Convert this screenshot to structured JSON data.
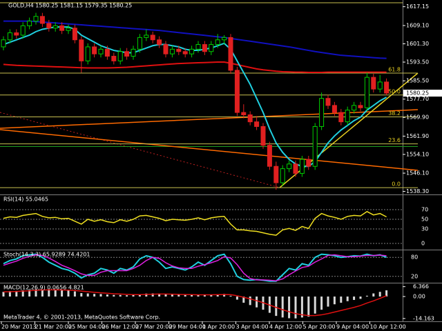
{
  "window_title": "GOLD,H4  1580.25 1581.15 1579.35 1580.25",
  "main": {
    "ylim": [
      1537,
      1620
    ],
    "yticks": [
      1617.15,
      {
        "value": 1609.1,
        "label": "1609.10"
      },
      {
        "value": 1601.3,
        "label": "1601.30"
      },
      {
        "value": 1593.5,
        "label": "1593.50"
      },
      {
        "value": 1585.5,
        "label": "1585.50"
      },
      {
        "value": 1577.7,
        "label": "1577.70"
      },
      {
        "value": 1569.9,
        "label": "1569.90"
      },
      {
        "value": 1561.9,
        "label": "1561.90"
      },
      {
        "value": 1554.1,
        "label": "1554.10"
      },
      {
        "value": 1546.1,
        "label": "1546.10"
      },
      {
        "value": 1538.3,
        "label": "1538.30"
      }
    ],
    "current_price": 1580.25,
    "fib_levels": [
      {
        "value": 61.8,
        "price": 1588.8
      },
      {
        "value": 50,
        "label": "50.0",
        "price": 1579.45
      },
      {
        "value": 38.2,
        "price": 1570.1
      },
      {
        "value": 23.6,
        "price": 1558.6
      },
      {
        "value": 0,
        "label": "0.0",
        "price": 1539.9
      }
    ],
    "candles": [
      [
        1600,
        1604.5,
        1598.5,
        1603
      ],
      [
        1603,
        1607.5,
        1601.5,
        1606
      ],
      [
        1606,
        1607.5,
        1603.5,
        1605
      ],
      [
        1605,
        1610.5,
        1603.5,
        1609
      ],
      [
        1609,
        1612.5,
        1607.5,
        1611
      ],
      [
        1611,
        1614.5,
        1609.5,
        1613
      ],
      [
        1613,
        1614.5,
        1608.5,
        1610
      ],
      [
        1610,
        1611.5,
        1606.5,
        1608
      ],
      [
        1608,
        1610.5,
        1606.5,
        1609
      ],
      [
        1609,
        1610.5,
        1605.5,
        1607
      ],
      [
        1607,
        1609.5,
        1605.5,
        1608
      ],
      [
        1608,
        1609.5,
        1601.5,
        1603
      ],
      [
        1603,
        1604.5,
        1589,
        1594
      ],
      [
        1594,
        1601.5,
        1592.5,
        1600
      ],
      [
        1600,
        1601.5,
        1595.5,
        1597
      ],
      [
        1597,
        1600.5,
        1595.5,
        1599
      ],
      [
        1599,
        1600.5,
        1594.5,
        1596
      ],
      [
        1596,
        1597.5,
        1592.5,
        1594
      ],
      [
        1594,
        1599.5,
        1592.5,
        1598
      ],
      [
        1598,
        1599.5,
        1594.5,
        1596
      ],
      [
        1596,
        1600.5,
        1594.5,
        1599
      ],
      [
        1599,
        1605.5,
        1597.5,
        1604
      ],
      [
        1604,
        1607.5,
        1602.5,
        1605
      ],
      [
        1605,
        1606.5,
        1601.5,
        1603
      ],
      [
        1603,
        1604.5,
        1599.5,
        1601
      ],
      [
        1601,
        1602.5,
        1595.5,
        1597
      ],
      [
        1597,
        1600.5,
        1595.5,
        1599
      ],
      [
        1599,
        1600.5,
        1596.5,
        1598
      ],
      [
        1598,
        1599.5,
        1595.5,
        1597
      ],
      [
        1597,
        1600.5,
        1595.5,
        1599
      ],
      [
        1599,
        1602.5,
        1597.5,
        1601
      ],
      [
        1601,
        1602.5,
        1596.5,
        1598
      ],
      [
        1598,
        1602.5,
        1596.5,
        1601
      ],
      [
        1601,
        1605.5,
        1599.5,
        1603
      ],
      [
        1603,
        1605,
        1601,
        1604
      ],
      [
        1604,
        1605.5,
        1588.5,
        1590
      ],
      [
        1590,
        1591.5,
        1570.5,
        1572
      ],
      [
        1572,
        1575.5,
        1569.5,
        1571
      ],
      [
        1571,
        1572.5,
        1566.5,
        1568
      ],
      [
        1568,
        1570.5,
        1564.5,
        1566
      ],
      [
        1566,
        1567.5,
        1556.5,
        1558
      ],
      [
        1558,
        1559.5,
        1547.5,
        1549
      ],
      [
        1549,
        1551,
        1539,
        1542
      ],
      [
        1542,
        1549.5,
        1540.5,
        1548
      ],
      [
        1548,
        1551.5,
        1546.5,
        1550
      ],
      [
        1550,
        1551.5,
        1544.5,
        1546
      ],
      [
        1546,
        1553.5,
        1544.5,
        1552
      ],
      [
        1552,
        1553.5,
        1547.5,
        1549
      ],
      [
        1549,
        1567.5,
        1547.5,
        1566
      ],
      [
        1566,
        1580.5,
        1564.5,
        1578
      ],
      [
        1578,
        1579.5,
        1573.5,
        1575
      ],
      [
        1575,
        1576.5,
        1570.5,
        1572
      ],
      [
        1572,
        1573.5,
        1566.5,
        1568
      ],
      [
        1568,
        1574.5,
        1566.5,
        1573
      ],
      [
        1573,
        1576.5,
        1571.5,
        1575
      ],
      [
        1575,
        1576.5,
        1572.5,
        1574
      ],
      [
        1574,
        1589,
        1572.5,
        1587
      ],
      [
        1587,
        1588.5,
        1580.5,
        1582
      ],
      [
        1582,
        1588,
        1580.5,
        1585
      ],
      [
        1585,
        1586.5,
        1579.35,
        1580.25
      ]
    ],
    "moving_averages": [
      {
        "color": "#1010c0",
        "values": [
          1611,
          1611,
          1611,
          1611,
          1611,
          1610.8,
          1610.6,
          1610.4,
          1610.2,
          1610,
          1609.8,
          1609.6,
          1609.4,
          1609.2,
          1609,
          1608.8,
          1608.6,
          1608.4,
          1608.2,
          1608,
          1607.8,
          1607.6,
          1607.4,
          1607.2,
          1607,
          1606.7,
          1606.4,
          1606.1,
          1605.8,
          1605.5,
          1605.2,
          1604.9,
          1604.6,
          1604.3,
          1604,
          1603.6,
          1603.2,
          1602.8,
          1602.4,
          1602,
          1601.6,
          1601.2,
          1600.8,
          1600.4,
          1600,
          1599.5,
          1599,
          1598.5,
          1598,
          1597.6,
          1597.2,
          1596.8,
          1596.4,
          1596.2,
          1596,
          1595.8,
          1595.6,
          1595.4,
          1595.2,
          1595.1
        ]
      },
      {
        "color": "#e01010",
        "values": [
          1592.5,
          1592.3,
          1592.1,
          1592,
          1591.9,
          1591.8,
          1591.7,
          1591.6,
          1591.5,
          1591.4,
          1591.3,
          1591.2,
          1591.1,
          1591,
          1591,
          1591,
          1591,
          1591.1,
          1591.2,
          1591.3,
          1591.5,
          1591.7,
          1591.9,
          1592.1,
          1592.3,
          1592.5,
          1592.7,
          1592.9,
          1593,
          1593.1,
          1593.2,
          1593.3,
          1593.4,
          1593.5,
          1593.5,
          1593,
          1592.4,
          1591.8,
          1591.2,
          1590.6,
          1590.2,
          1589.9,
          1589.6,
          1589.4,
          1589.3,
          1589.2,
          1589.2,
          1589.1,
          1589.1,
          1589.1,
          1589.2,
          1589.2,
          1589.2,
          1589.2,
          1589.2,
          1589.2,
          1589.2,
          1589.2,
          1589.2,
          1589.2
        ]
      },
      {
        "color": "#20d0e0",
        "values": [
          1601,
          1602,
          1603,
          1604,
          1605,
          1606.5,
          1607.5,
          1608,
          1608.5,
          1608.5,
          1608.5,
          1607.5,
          1605,
          1603.5,
          1602,
          1600.5,
          1599.5,
          1598.5,
          1598,
          1597.5,
          1597.5,
          1598.5,
          1599.5,
          1600.5,
          1601,
          1601,
          1600.5,
          1600,
          1599,
          1598.5,
          1598.5,
          1599,
          1599.5,
          1600.5,
          1601.5,
          1599,
          1594,
          1589,
          1584,
          1578,
          1572,
          1565,
          1559,
          1555,
          1552,
          1550,
          1549,
          1549,
          1551,
          1555,
          1559,
          1562,
          1564.5,
          1566.5,
          1568.5,
          1570,
          1573,
          1575,
          1577,
          1578.5
        ]
      }
    ]
  },
  "rsi": {
    "label": "RSI(14) 55.0465",
    "ylim": [
      0,
      100
    ],
    "ticks": [
      0,
      30,
      50,
      70
    ],
    "values": [
      52,
      55,
      54,
      58,
      60,
      62,
      56,
      53,
      54,
      51,
      52,
      46,
      40,
      50,
      46,
      49,
      45,
      43,
      49,
      46,
      50,
      57,
      58,
      55,
      52,
      47,
      50,
      49,
      48,
      50,
      53,
      49,
      53,
      55,
      56,
      40,
      28,
      28,
      26,
      25,
      22,
      19,
      17,
      28,
      31,
      27,
      35,
      31,
      52,
      62,
      57,
      54,
      50,
      56,
      58,
      57,
      66,
      59,
      62,
      55
    ]
  },
  "stochastic": {
    "label": "Stoch(14,3,3) 65.9289 74.4201",
    "ylim": [
      0,
      100
    ],
    "ticks": [
      20,
      80
    ],
    "main": [
      60,
      70,
      75,
      85,
      88,
      90,
      80,
      65,
      55,
      45,
      40,
      30,
      15,
      25,
      30,
      45,
      40,
      30,
      45,
      40,
      50,
      75,
      85,
      80,
      65,
      45,
      50,
      45,
      40,
      50,
      65,
      55,
      70,
      85,
      90,
      60,
      20,
      10,
      8,
      10,
      8,
      5,
      5,
      25,
      45,
      40,
      60,
      55,
      80,
      90,
      88,
      85,
      80,
      82,
      85,
      84,
      90,
      85,
      88,
      80
    ],
    "signal": [
      55,
      62,
      68,
      77,
      83,
      88,
      86,
      78,
      67,
      55,
      47,
      38,
      28,
      23,
      23,
      33,
      38,
      38,
      38,
      38,
      45,
      55,
      70,
      80,
      77,
      63,
      53,
      47,
      45,
      45,
      52,
      57,
      63,
      70,
      82,
      78,
      57,
      30,
      13,
      9,
      9,
      8,
      6,
      12,
      25,
      37,
      48,
      52,
      65,
      75,
      86,
      88,
      85,
      82,
      82,
      84,
      86,
      86,
      87,
      85
    ]
  },
  "macd": {
    "label": "MACD(12,26,9) 0.0656 4.821",
    "ylim": [
      -16,
      8
    ],
    "ticks": [
      6.366,
      {
        "value": 0,
        "label": "0.00"
      },
      -14.163
    ],
    "histogram": [
      3,
      3.5,
      3.6,
      4,
      4.3,
      4.6,
      4.5,
      4.3,
      4.2,
      4,
      3.9,
      3.3,
      2.2,
      2,
      1.7,
      1.6,
      1.3,
      1,
      1,
      0.8,
      0.9,
      1.5,
      1.9,
      2,
      1.9,
      1.5,
      1.4,
      1.2,
      1,
      1,
      1.1,
      1,
      1.2,
      1.5,
      1.7,
      0.5,
      -2,
      -4,
      -5.5,
      -7,
      -8.5,
      -10.5,
      -12.5,
      -13.5,
      -14,
      -14.1,
      -13.5,
      -13,
      -11,
      -8.5,
      -6.5,
      -5,
      -4,
      -3,
      -2.2,
      -1.5,
      0.5,
      2,
      3,
      4
    ],
    "signal": [
      3,
      3.1,
      3.3,
      3.5,
      3.7,
      4,
      4.2,
      4.3,
      4.3,
      4.2,
      4.1,
      3.9,
      3.5,
      3.1,
      2.7,
      2.4,
      2.1,
      1.8,
      1.6,
      1.4,
      1.2,
      1.2,
      1.4,
      1.5,
      1.6,
      1.6,
      1.5,
      1.4,
      1.3,
      1.2,
      1.1,
      1.1,
      1.1,
      1.2,
      1.3,
      1.2,
      0.5,
      -0.5,
      -1.5,
      -2.7,
      -4,
      -5.5,
      -7,
      -8.5,
      -9.8,
      -11,
      -11.8,
      -12.3,
      -12.3,
      -11.8,
      -11,
      -10,
      -9,
      -8,
      -7,
      -5.8,
      -4.2,
      -2.8,
      -1.2,
      0.5
    ]
  },
  "time_axis": [
    "20 Mar 2013",
    "21 Mar 20:00",
    "25 Mar 04:00",
    "26 Mar 12:00",
    "27 Mar 20:00",
    "29 Mar 04:00",
    "1 Apr 20:00",
    "3 Apr 04:00",
    "4 Apr 12:00",
    "5 Apr 20:00",
    "9 Apr 04:00",
    "10 Apr 12:00"
  ],
  "copyright": "MetaTrader 4, © 2001-2013, MetaQuotes Software Corp."
}
